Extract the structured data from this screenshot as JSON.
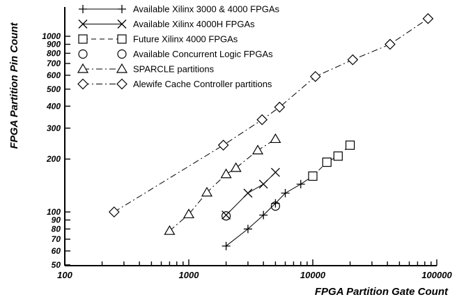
{
  "chart_data": {
    "type": "line",
    "xlabel": "FPGA Partition Gate Count",
    "ylabel": "FPGA Partition Pin Count",
    "x_scale": "log",
    "y_scale": "log",
    "xlim": [
      100,
      100000
    ],
    "ylim": [
      50,
      1500
    ],
    "x_tick_labels": [
      "100",
      "1000",
      "10000",
      "100000"
    ],
    "y_tick_labels": [
      "50",
      "60",
      "70",
      "80",
      "90",
      "100",
      "200",
      "300",
      "400",
      "500",
      "600",
      "700",
      "800",
      "900",
      "1000"
    ],
    "legend_position": "top-left",
    "grid": false,
    "series": [
      {
        "name": "Available Xilinx 3000 & 4000 FPGAs",
        "marker": "plus",
        "line": "solid",
        "x": [
          2000,
          3000,
          4000,
          5000,
          6000,
          8000,
          10000
        ],
        "y": [
          64,
          80,
          96,
          112,
          128,
          144,
          160
        ]
      },
      {
        "name": "Available Xilinx 4000H FPGAs",
        "marker": "cross",
        "line": "solid",
        "x": [
          2000,
          3000,
          4000,
          5000
        ],
        "y": [
          96,
          128,
          144,
          168
        ]
      },
      {
        "name": "Future Xilinx 4000 FPGAs",
        "marker": "square",
        "line": "dashed",
        "x": [
          10000,
          13000,
          16000,
          20000
        ],
        "y": [
          160,
          192,
          208,
          240
        ]
      },
      {
        "name": "Available Concurrent Logic FPGAs",
        "marker": "circle",
        "line": "none",
        "x": [
          2000,
          5000
        ],
        "y": [
          95,
          108
        ]
      },
      {
        "name": "SPARCLE partitions",
        "marker": "triangle",
        "line": "dashdot",
        "x": [
          700,
          1000,
          1400,
          2000,
          2400,
          3600,
          5000
        ],
        "y": [
          78,
          97,
          129,
          164,
          178,
          224,
          260
        ]
      },
      {
        "name": "Alewife Cache Controller partitions",
        "marker": "diamond",
        "line": "dashdot",
        "x": [
          250,
          1900,
          3900,
          5400,
          10500,
          21000,
          42000,
          85000
        ],
        "y": [
          100,
          240,
          335,
          395,
          590,
          735,
          900,
          1260
        ]
      }
    ]
  }
}
